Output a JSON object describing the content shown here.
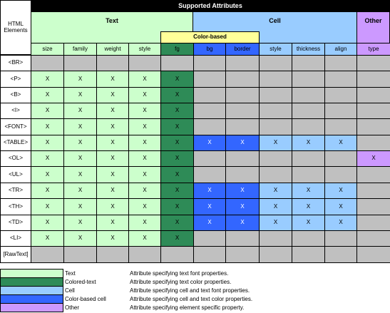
{
  "title": "Supported Attributes",
  "row_header_label": "HTML Elements",
  "groups": {
    "text": "Text",
    "cell": "Cell",
    "other": "Other"
  },
  "subgroup_color": "Color-based",
  "columns": [
    "size",
    "family",
    "weight",
    "style",
    "fg",
    "bg",
    "border",
    "style",
    "thickness",
    "align",
    "type"
  ],
  "rows": [
    {
      "label": "<BR>",
      "marks": [
        0,
        0,
        0,
        0,
        0,
        0,
        0,
        0,
        0,
        0,
        0
      ]
    },
    {
      "label": "<P>",
      "marks": [
        1,
        1,
        1,
        1,
        1,
        0,
        0,
        0,
        0,
        0,
        0
      ]
    },
    {
      "label": "<B>",
      "marks": [
        1,
        1,
        1,
        1,
        1,
        0,
        0,
        0,
        0,
        0,
        0
      ]
    },
    {
      "label": "<I>",
      "marks": [
        1,
        1,
        1,
        1,
        1,
        0,
        0,
        0,
        0,
        0,
        0
      ]
    },
    {
      "label": "<FONT>",
      "marks": [
        1,
        1,
        1,
        1,
        1,
        0,
        0,
        0,
        0,
        0,
        0
      ]
    },
    {
      "label": "<TABLE>",
      "marks": [
        1,
        1,
        1,
        1,
        1,
        1,
        1,
        1,
        1,
        1,
        0
      ]
    },
    {
      "label": "<OL>",
      "marks": [
        1,
        1,
        1,
        1,
        1,
        0,
        0,
        0,
        0,
        0,
        1
      ]
    },
    {
      "label": "<UL>",
      "marks": [
        1,
        1,
        1,
        1,
        1,
        0,
        0,
        0,
        0,
        0,
        0
      ]
    },
    {
      "label": "<TR>",
      "marks": [
        1,
        1,
        1,
        1,
        1,
        1,
        1,
        1,
        1,
        1,
        0
      ]
    },
    {
      "label": "<TH>",
      "marks": [
        1,
        1,
        1,
        1,
        1,
        1,
        1,
        1,
        1,
        1,
        0
      ]
    },
    {
      "label": "<TD>",
      "marks": [
        1,
        1,
        1,
        1,
        1,
        1,
        1,
        1,
        1,
        1,
        0
      ]
    },
    {
      "label": "<LI>",
      "marks": [
        1,
        1,
        1,
        1,
        1,
        0,
        0,
        0,
        0,
        0,
        0
      ]
    },
    {
      "label": "[RawText]",
      "marks": [
        0,
        0,
        0,
        0,
        0,
        0,
        0,
        0,
        0,
        0,
        0
      ]
    }
  ],
  "mark_symbol": "X",
  "legend": [
    {
      "name": "Text",
      "desc": "Attribute specifying text font properties.",
      "color": "#ccffcc"
    },
    {
      "name": "Colored-text",
      "desc": "Attribute specifying text color properties.",
      "color": "#2e8b57"
    },
    {
      "name": "Cell",
      "desc": "Attribute specifying cell and text font properties.",
      "color": "#99ccff"
    },
    {
      "name": "Color-based cell",
      "desc": "Attribute specifying cell and text color properties.",
      "color": "#3366ff"
    },
    {
      "name": "Other",
      "desc": "Attribute specifying element specific property.",
      "color": "#cc99ff"
    }
  ],
  "colors": {
    "text": "#ccffcc",
    "colored_text": "#2e8b57",
    "cell": "#99ccff",
    "color_cell": "#3366ff",
    "other": "#cc99ff",
    "unsupported": "#c0c0c0",
    "title_bar": "#000000",
    "color_based_band": "#ffff99"
  }
}
